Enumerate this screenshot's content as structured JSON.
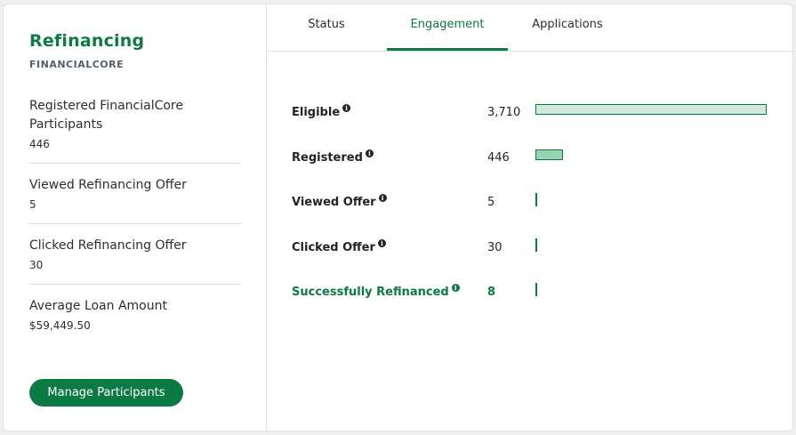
{
  "panel": {
    "title": "Refinancing",
    "subtitle": "FINANCIALCORE",
    "stats": [
      {
        "label": "Registered FinancialCore Participants",
        "value": "446"
      },
      {
        "label": "Viewed Refinancing Offer",
        "value": "5"
      },
      {
        "label": "Clicked Refinancing Offer",
        "value": "30"
      },
      {
        "label": "Average Loan Amount",
        "value": "$59,449.50"
      }
    ],
    "button_label": "Manage Participants"
  },
  "tabs": [
    {
      "label": "Status",
      "active": false
    },
    {
      "label": "Engagement",
      "active": true
    },
    {
      "label": "Applications",
      "active": false
    }
  ],
  "engagement": {
    "max": 3710,
    "rows": [
      {
        "label": "Eligible",
        "value": "3,710",
        "amount": 3710,
        "icon": "info-icon"
      },
      {
        "label": "Registered",
        "value": "446",
        "amount": 446,
        "icon": "info-icon"
      },
      {
        "label": "Viewed Offer",
        "value": "5",
        "amount": 5,
        "icon": "info-icon"
      },
      {
        "label": "Clicked Offer",
        "value": "30",
        "amount": 30,
        "icon": "info-icon"
      },
      {
        "label": "Successfully Refinanced",
        "value": "8",
        "amount": 8,
        "icon": "info-icon",
        "highlight": true
      }
    ]
  },
  "colors": {
    "accent": "#0c7a43",
    "bar_fill": "#cdeadb",
    "bar_fill_mid": "#9ad3b3"
  }
}
